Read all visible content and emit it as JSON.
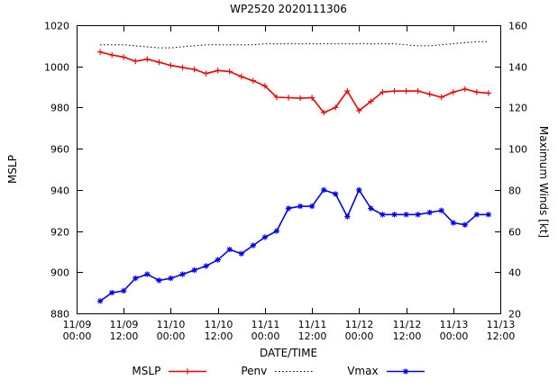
{
  "chart_data": {
    "type": "line",
    "title": "WP2520 2020111306",
    "xlabel": "DATE/TIME",
    "ylabel_left": "MSLP",
    "ylabel_right": "Maximum Winds [kt]",
    "background": "#ffffff",
    "axis_color": "#000000",
    "legend_position": "bottom-center",
    "grid": false,
    "x_range_hours": [
      0,
      108
    ],
    "x_ticks": [
      {
        "hour": 0,
        "line1": "11/09",
        "line2": "00:00"
      },
      {
        "hour": 12,
        "line1": "11/09",
        "line2": "12:00"
      },
      {
        "hour": 24,
        "line1": "11/10",
        "line2": "00:00"
      },
      {
        "hour": 36,
        "line1": "11/10",
        "line2": "12:00"
      },
      {
        "hour": 48,
        "line1": "11/11",
        "line2": "00:00"
      },
      {
        "hour": 60,
        "line1": "11/11",
        "line2": "12:00"
      },
      {
        "hour": 72,
        "line1": "11/12",
        "line2": "00:00"
      },
      {
        "hour": 84,
        "line1": "11/12",
        "line2": "12:00"
      },
      {
        "hour": 96,
        "line1": "11/13",
        "line2": "00:00"
      },
      {
        "hour": 108,
        "line1": "11/13",
        "line2": "12:00"
      }
    ],
    "y_left": {
      "min": 880,
      "max": 1020,
      "ticks": [
        880,
        900,
        920,
        940,
        960,
        980,
        1000,
        1020
      ]
    },
    "y_right": {
      "min": 20,
      "max": 160,
      "ticks": [
        20,
        40,
        60,
        80,
        100,
        120,
        140,
        160
      ]
    },
    "x_hours": [
      6,
      9,
      12,
      15,
      18,
      21,
      24,
      27,
      30,
      33,
      36,
      39,
      42,
      45,
      48,
      51,
      54,
      57,
      60,
      63,
      66,
      69,
      72,
      75,
      78,
      81,
      84,
      87,
      90,
      93,
      96,
      99,
      102,
      105
    ],
    "series": [
      {
        "name": "MSLP",
        "axis": "left",
        "color": "#ee0000",
        "marker": "plus",
        "line": "solid",
        "values": [
          1007,
          1005.5,
          1004.5,
          1002.5,
          1003.5,
          1002,
          1000.5,
          999.5,
          998.5,
          996.5,
          998,
          997.5,
          995,
          993,
          990.5,
          985,
          984.8,
          984.5,
          984.8,
          977.5,
          980,
          988,
          978.5,
          983,
          987.5,
          988,
          988,
          988,
          986.5,
          985,
          987.5,
          989,
          987.5,
          987
        ]
      },
      {
        "name": "Penv",
        "axis": "left",
        "color": "#000000",
        "marker": "none",
        "line": "dotted",
        "values": [
          1010.5,
          1010.5,
          1010.5,
          1010,
          1009.5,
          1009,
          1009,
          1009.5,
          1010,
          1010.5,
          1010.5,
          1010.5,
          1010.5,
          1010.5,
          1011,
          1011,
          1011,
          1011,
          1011,
          1011,
          1011,
          1011,
          1011,
          1011,
          1011,
          1011,
          1010.5,
          1010,
          1010,
          1010.5,
          1011,
          1011.5,
          1012,
          1012
        ]
      },
      {
        "name": "Vmax",
        "axis": "right",
        "color": "#0000ee",
        "marker": "asterisk",
        "line": "solid",
        "values": [
          26,
          30,
          31,
          37,
          39,
          36,
          37,
          39,
          41,
          43,
          46,
          51,
          49,
          53,
          57,
          60,
          71,
          72,
          72,
          80,
          78,
          67,
          80,
          71,
          68,
          68,
          68,
          68,
          69,
          70,
          64,
          63,
          68,
          68
        ]
      }
    ]
  }
}
